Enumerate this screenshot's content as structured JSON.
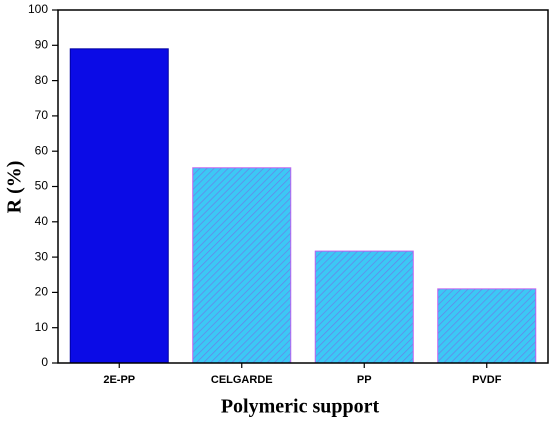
{
  "chart_data": {
    "type": "bar",
    "x_label": "Polymeric support",
    "y_label": "R (%)",
    "categories": [
      "2E-PP",
      "CELGARDE",
      "PP",
      "PVDF"
    ],
    "values": [
      89,
      55.3,
      31.7,
      21
    ],
    "colors": [
      "#0b0be6",
      "#3cc8f5",
      "#3cc8f5",
      "#3cc8f5"
    ],
    "patterns": [
      "solid",
      "hatch",
      "hatch",
      "hatch"
    ],
    "ylim": [
      0,
      100
    ],
    "yticks": [
      0,
      10,
      20,
      30,
      40,
      50,
      60,
      70,
      80,
      90,
      100
    ],
    "grid": false
  }
}
